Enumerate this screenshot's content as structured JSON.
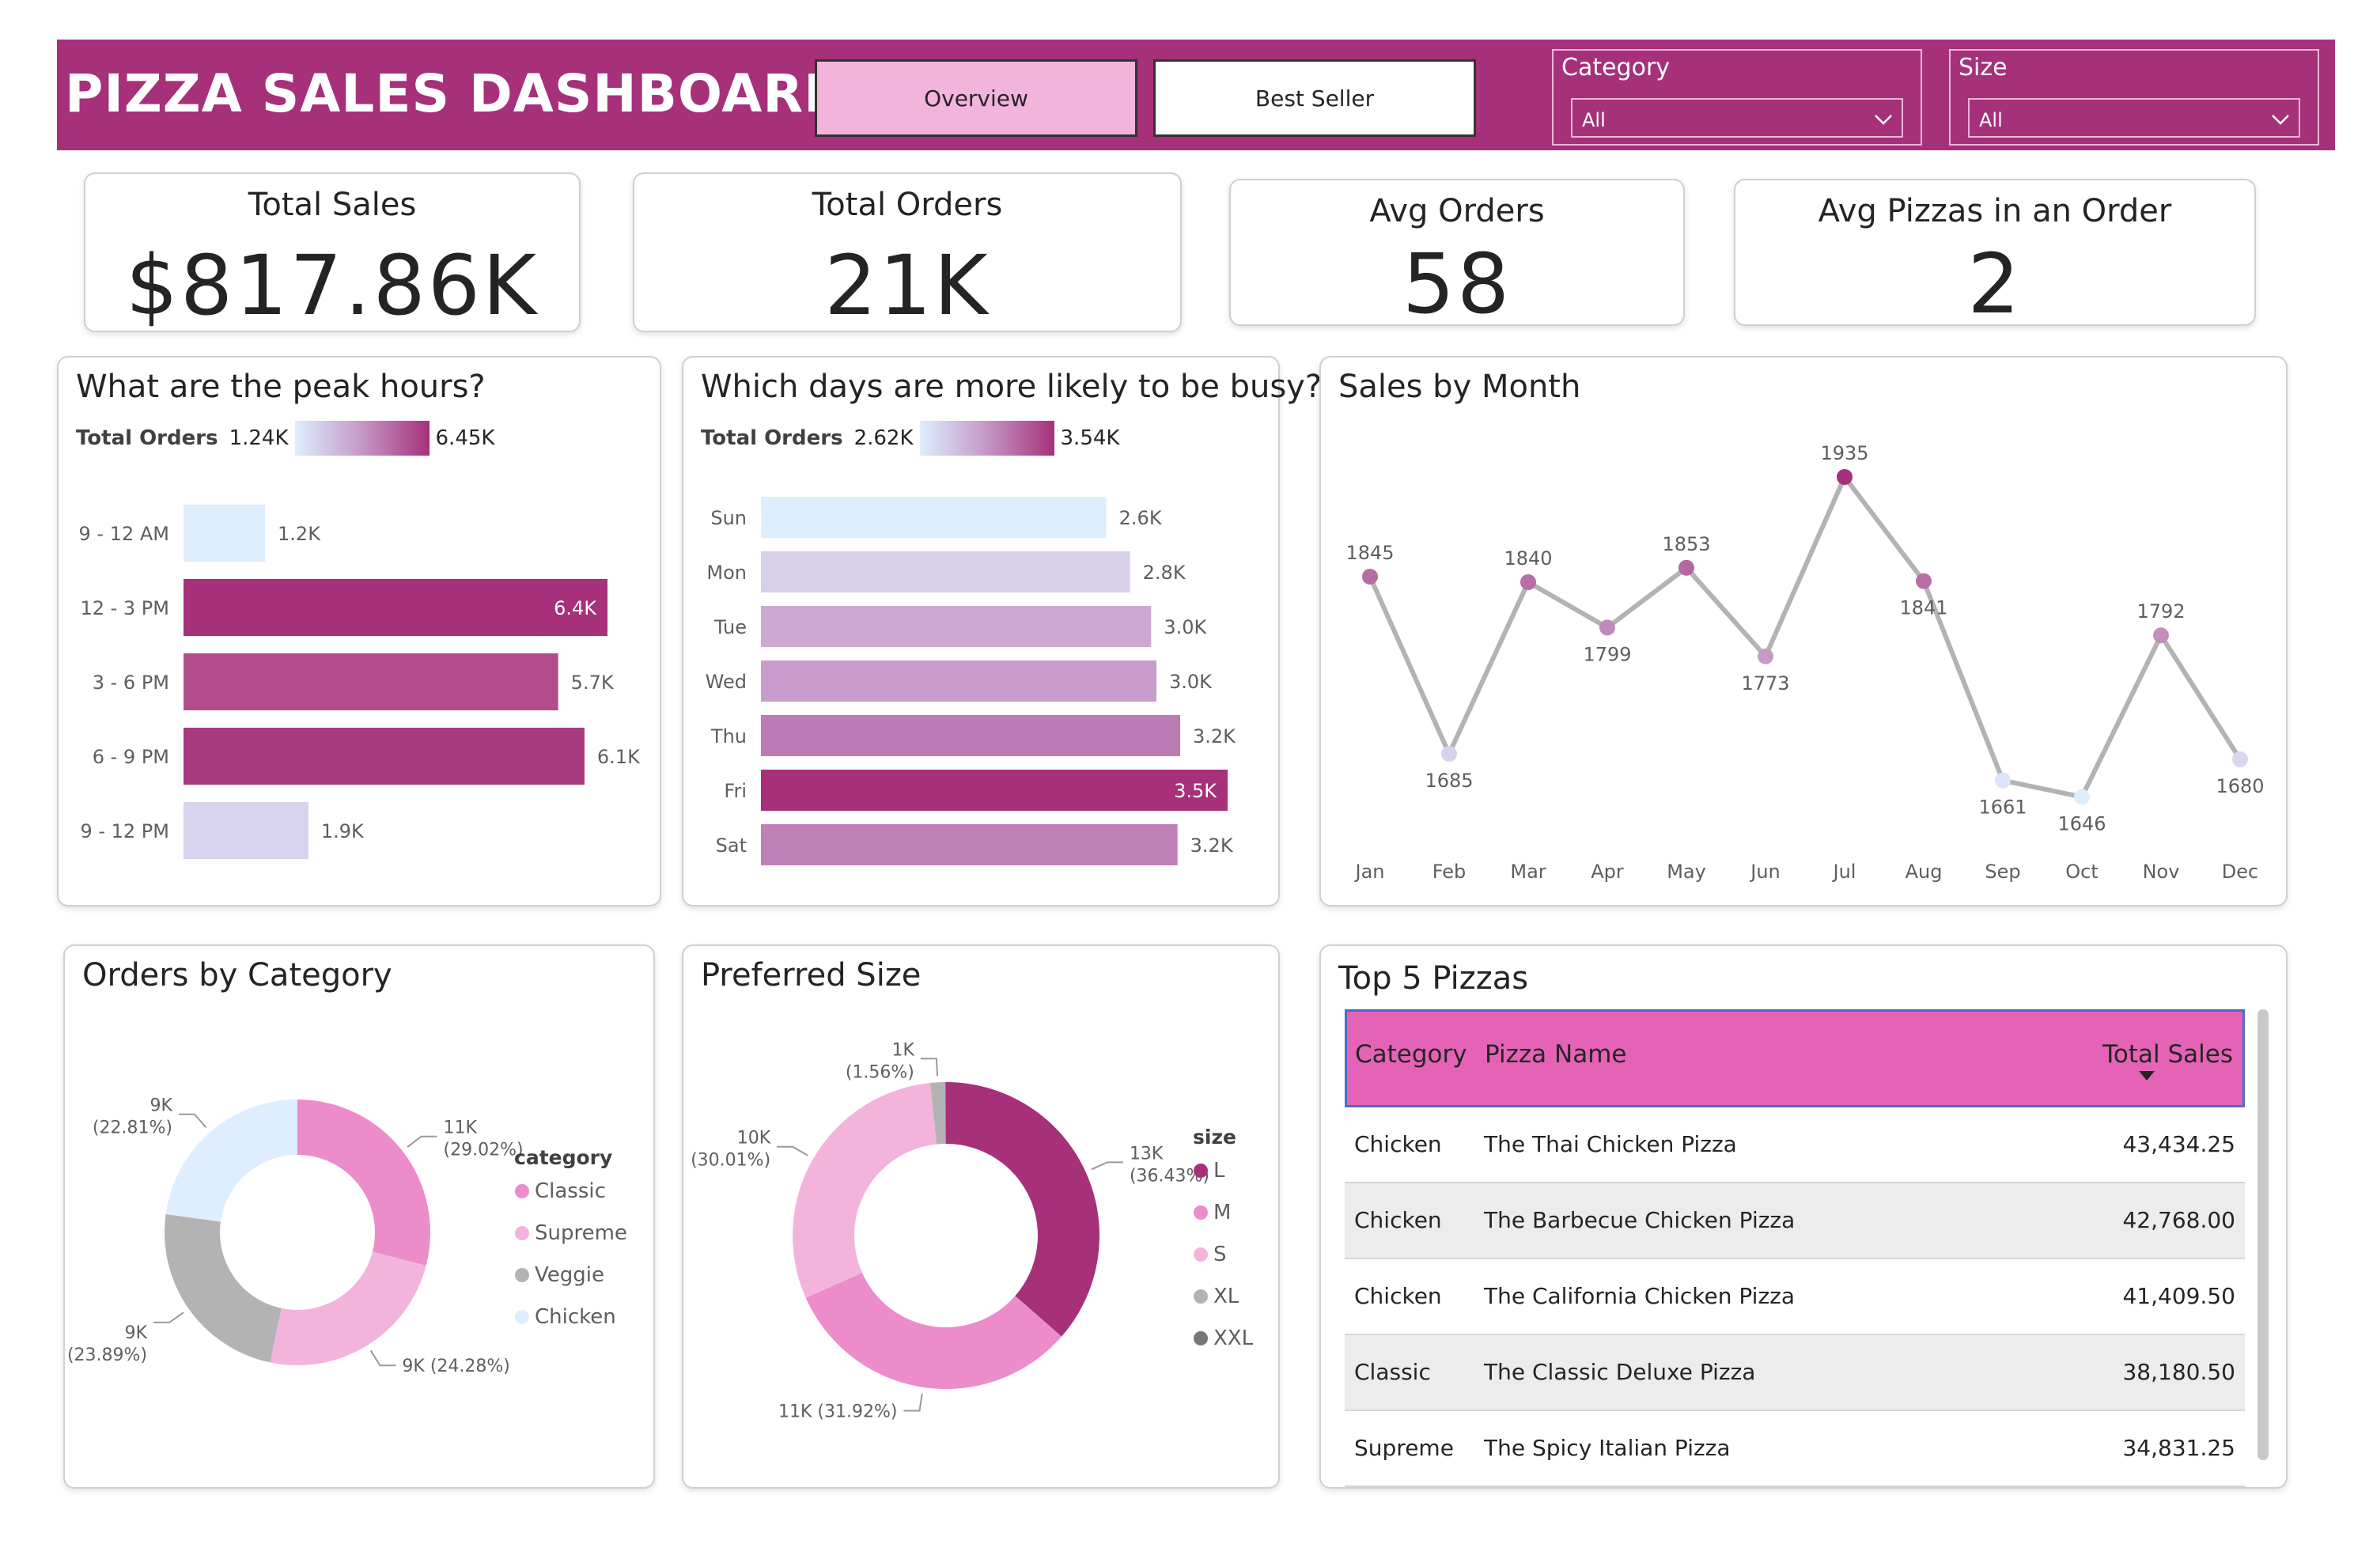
{
  "header": {
    "title": "PIZZA SALES DASHBOARD",
    "nav": {
      "overview": "Overview",
      "best_seller": "Best Seller"
    },
    "filters": {
      "category": {
        "label": "Category",
        "value": "All"
      },
      "size": {
        "label": "Size",
        "value": "All"
      }
    }
  },
  "kpis": {
    "total_sales": {
      "label": "Total Sales",
      "value": "$817.86K"
    },
    "total_orders": {
      "label": "Total Orders",
      "value": "21K"
    },
    "avg_orders": {
      "label": "Avg Orders",
      "value": "58"
    },
    "avg_pizzas": {
      "label": "Avg Pizzas in an Order",
      "value": "2"
    }
  },
  "peak_hours": {
    "title": "What are the peak hours?",
    "legend": {
      "label": "Total Orders",
      "min": "1.24K",
      "max": "6.45K"
    }
  },
  "busy_days": {
    "title": "Which days are more likely to be busy?",
    "legend": {
      "label": "Total Orders",
      "min": "2.62K",
      "max": "3.54K"
    }
  },
  "sales_by_month": {
    "title": "Sales by Month"
  },
  "orders_by_category": {
    "title": "Orders by Category",
    "legend_title": "category"
  },
  "preferred_size": {
    "title": "Preferred Size",
    "legend_title": "size"
  },
  "top5": {
    "title": "Top 5 Pizzas",
    "columns": [
      "Category",
      "Pizza Name",
      "Total Sales"
    ],
    "rows": [
      {
        "category": "Chicken",
        "name": "The Thai Chicken Pizza",
        "sales": "43,434.25"
      },
      {
        "category": "Chicken",
        "name": "The Barbecue Chicken Pizza",
        "sales": "42,768.00"
      },
      {
        "category": "Chicken",
        "name": "The California Chicken Pizza",
        "sales": "41,409.50"
      },
      {
        "category": "Classic",
        "name": "The Classic Deluxe Pizza",
        "sales": "38,180.50"
      },
      {
        "category": "Supreme",
        "name": "The Spicy Italian Pizza",
        "sales": "34,831.25"
      }
    ]
  },
  "colors": {
    "brand": "#a6307a",
    "header_table": "#e463b6"
  },
  "chart_data": [
    {
      "type": "bar",
      "title": "What are the peak hours?",
      "categories": [
        "9 - 12 AM",
        "12 - 3 PM",
        "3 - 6 PM",
        "6 - 9 PM",
        "9 - 12 PM"
      ],
      "values": [
        1240,
        6450,
        5700,
        6100,
        1900
      ],
      "labels": [
        "1.2K",
        "6.4K",
        "5.7K",
        "6.1K",
        "1.9K"
      ],
      "colors": [
        "#deeeff",
        "#a6307a",
        "#b24c8c",
        "#a83a80",
        "#d8d3ee"
      ]
    },
    {
      "type": "bar",
      "title": "Which days are more likely to be busy?",
      "categories": [
        "Sun",
        "Mon",
        "Tue",
        "Wed",
        "Thu",
        "Fri",
        "Sat"
      ],
      "values": [
        2620,
        2800,
        2960,
        3000,
        3180,
        3540,
        3160
      ],
      "labels": [
        "2.6K",
        "2.8K",
        "3.0K",
        "3.0K",
        "3.2K",
        "3.5K",
        "3.2K"
      ],
      "colors": [
        "#deeeff",
        "#d8d0ea",
        "#cda8d2",
        "#c99cce",
        "#bd7bb6",
        "#a6307a",
        "#bf80b8"
      ]
    },
    {
      "type": "line",
      "title": "Sales by Month",
      "categories": [
        "Jan",
        "Feb",
        "Mar",
        "Apr",
        "May",
        "Jun",
        "Jul",
        "Aug",
        "Sep",
        "Oct",
        "Nov",
        "Dec"
      ],
      "values": [
        1845,
        1685,
        1840,
        1799,
        1853,
        1773,
        1935,
        1841,
        1661,
        1646,
        1792,
        1680
      ],
      "ylim": [
        1620,
        1960
      ]
    },
    {
      "type": "pie",
      "title": "Orders by Category",
      "slices": [
        {
          "name": "Classic",
          "value": 29.02,
          "label": "11K",
          "pct": "(29.02%)",
          "color": "#ec8ccb"
        },
        {
          "name": "Supreme",
          "value": 24.28,
          "label": "9K (24.28%)",
          "pct": "",
          "color": "#f3b4dc"
        },
        {
          "name": "Veggie",
          "value": 23.89,
          "label": "9K",
          "pct": "(23.89%)",
          "color": "#b3b3b3"
        },
        {
          "name": "Chicken",
          "value": 22.81,
          "label": "9K",
          "pct": "(22.81%)",
          "color": "#deeeff"
        }
      ]
    },
    {
      "type": "pie",
      "title": "Preferred Size",
      "slices": [
        {
          "name": "L",
          "value": 36.43,
          "label": "13K",
          "pct": "(36.43%)",
          "color": "#a6307a"
        },
        {
          "name": "M",
          "value": 31.92,
          "label": "11K (31.92%)",
          "pct": "",
          "color": "#ec8ccb"
        },
        {
          "name": "S",
          "value": 30.01,
          "label": "10K",
          "pct": "(30.01%)",
          "color": "#f3b4dc"
        },
        {
          "name": "XL",
          "value": 1.56,
          "label": "1K",
          "pct": "(1.56%)",
          "color": "#b3b3b3"
        },
        {
          "name": "XXL",
          "value": 0.08,
          "label": "",
          "pct": "",
          "color": "#777777"
        }
      ]
    }
  ]
}
